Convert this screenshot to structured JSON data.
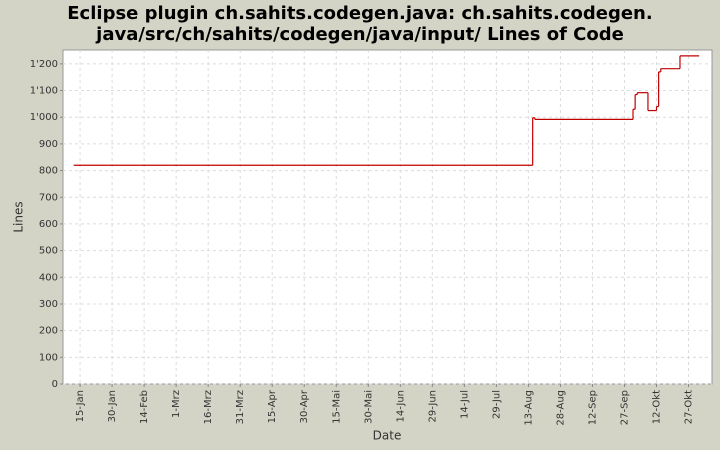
{
  "chart_data": {
    "type": "line",
    "step": "post",
    "title": [
      "Eclipse plugin ch.sahits.codegen.java: ch.sahits.codegen.",
      "java/src/ch/sahits/codegen/java/input/ Lines of Code"
    ],
    "x_label": "Date",
    "y_label": "Lines",
    "x": [
      "01-12",
      "08-15",
      "08-16",
      "10-01",
      "10-02",
      "10-03",
      "10-08",
      "10-12",
      "10-13",
      "10-14",
      "10-23",
      "11-01"
    ],
    "series": [
      {
        "name": "Lines",
        "color": "#c00000",
        "values": [
          820,
          998,
          992,
          1030,
          1085,
          1092,
          1025,
          1040,
          1170,
          1182,
          1230,
          1230
        ]
      }
    ],
    "xlim": [
      "01-07",
      "11-07"
    ],
    "xticks": [
      {
        "value": "01-15",
        "label": "15-Jan"
      },
      {
        "value": "01-30",
        "label": "30-Jan"
      },
      {
        "value": "02-14",
        "label": "14-Feb"
      },
      {
        "value": "03-01",
        "label": "1-Mrz"
      },
      {
        "value": "03-16",
        "label": "16-Mrz"
      },
      {
        "value": "03-31",
        "label": "31-Mrz"
      },
      {
        "value": "04-15",
        "label": "15-Apr"
      },
      {
        "value": "04-30",
        "label": "30-Apr"
      },
      {
        "value": "05-15",
        "label": "15-Mai"
      },
      {
        "value": "05-30",
        "label": "30-Mai"
      },
      {
        "value": "06-14",
        "label": "14-Jun"
      },
      {
        "value": "06-29",
        "label": "29-Jun"
      },
      {
        "value": "07-14",
        "label": "14-Jul"
      },
      {
        "value": "07-29",
        "label": "29-Jul"
      },
      {
        "value": "08-13",
        "label": "13-Aug"
      },
      {
        "value": "08-28",
        "label": "28-Aug"
      },
      {
        "value": "09-12",
        "label": "12-Sep"
      },
      {
        "value": "09-27",
        "label": "27-Sep"
      },
      {
        "value": "10-12",
        "label": "12-Okt"
      },
      {
        "value": "10-27",
        "label": "27-Okt"
      }
    ],
    "ylim": [
      0,
      1252
    ],
    "yticks": [
      0,
      100,
      200,
      300,
      400,
      500,
      600,
      700,
      800,
      900,
      {
        "value": 1000,
        "label": "1'000"
      },
      {
        "value": 1100,
        "label": "1'100"
      },
      {
        "value": 1200,
        "label": "1'200"
      }
    ],
    "grid": true
  }
}
